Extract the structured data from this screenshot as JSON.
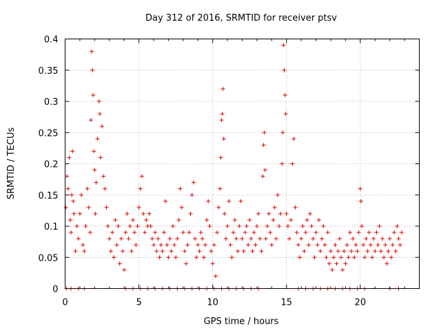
{
  "chart_data": {
    "type": "scatter",
    "title": "Day 312 of 2016, SRMTID for receiver ptsv",
    "xlabel": "GPS time / hours",
    "ylabel": "SRMTID / TECUs",
    "xlim": [
      0,
      24
    ],
    "ylim": [
      0,
      0.4
    ],
    "xticks": [
      0,
      5,
      10,
      15,
      20
    ],
    "xtick_labels": [
      "0",
      "5",
      "10",
      "15",
      "20"
    ],
    "yticks": [
      0,
      0.05,
      0.1,
      0.15,
      0.2,
      0.25,
      0.3,
      0.35,
      0.4
    ],
    "ytick_labels": [
      "0",
      "0.05",
      "0.1",
      "0.15",
      "0.2",
      "0.25",
      "0.3",
      "0.35",
      "0.4"
    ],
    "grid": true,
    "marker": "+",
    "color": "#e00000",
    "series": [
      {
        "name": "SRMTID",
        "points": [
          [
            0.05,
            0.13
          ],
          [
            0.12,
            0.18
          ],
          [
            0.2,
            0.16
          ],
          [
            0.28,
            0.21
          ],
          [
            0.35,
            0.11
          ],
          [
            0.4,
            0.09
          ],
          [
            0.45,
            0.15
          ],
          [
            0.5,
            0.22
          ],
          [
            0.55,
            0.14
          ],
          [
            0.6,
            0.12
          ],
          [
            0.7,
            0.06
          ],
          [
            0.8,
            0.1
          ],
          [
            0.9,
            0.08
          ],
          [
            1.0,
            0.12
          ],
          [
            1.1,
            0.15
          ],
          [
            1.2,
            0.07
          ],
          [
            1.3,
            0.06
          ],
          [
            1.4,
            0.1
          ],
          [
            1.5,
            0.16
          ],
          [
            1.6,
            0.13
          ],
          [
            1.7,
            0.09
          ],
          [
            1.75,
            0.27
          ],
          [
            1.8,
            0.38
          ],
          [
            1.85,
            0.35
          ],
          [
            1.9,
            0.31
          ],
          [
            1.95,
            0.22
          ],
          [
            2.0,
            0.19
          ],
          [
            2.05,
            0.12
          ],
          [
            2.1,
            0.17
          ],
          [
            2.2,
            0.24
          ],
          [
            2.3,
            0.3
          ],
          [
            2.35,
            0.28
          ],
          [
            2.4,
            0.21
          ],
          [
            2.5,
            0.26
          ],
          [
            2.6,
            0.18
          ],
          [
            2.7,
            0.16
          ],
          [
            2.8,
            0.13
          ],
          [
            2.9,
            0.1
          ],
          [
            3.0,
            0.08
          ],
          [
            3.1,
            0.06
          ],
          [
            3.2,
            0.09
          ],
          [
            3.3,
            0.05
          ],
          [
            3.4,
            0.11
          ],
          [
            3.5,
            0.07
          ],
          [
            3.6,
            0.1
          ],
          [
            3.7,
            0.04
          ],
          [
            3.8,
            0.08
          ],
          [
            3.9,
            0.06
          ],
          [
            4.0,
            0.03
          ],
          [
            4.1,
            0.09
          ],
          [
            4.2,
            0.12
          ],
          [
            4.3,
            0.08
          ],
          [
            4.4,
            0.1
          ],
          [
            4.5,
            0.06
          ],
          [
            4.6,
            0.11
          ],
          [
            4.7,
            0.09
          ],
          [
            4.8,
            0.07
          ],
          [
            4.9,
            0.1
          ],
          [
            5.0,
            0.13
          ],
          [
            5.1,
            0.16
          ],
          [
            5.2,
            0.18
          ],
          [
            5.3,
            0.12
          ],
          [
            5.4,
            0.09
          ],
          [
            5.5,
            0.11
          ],
          [
            5.6,
            0.1
          ],
          [
            5.7,
            0.12
          ],
          [
            5.8,
            0.1
          ],
          [
            5.9,
            0.08
          ],
          [
            6.0,
            0.07
          ],
          [
            6.1,
            0.09
          ],
          [
            6.2,
            0.06
          ],
          [
            6.3,
            0.08
          ],
          [
            6.4,
            0.05
          ],
          [
            6.5,
            0.07
          ],
          [
            6.6,
            0.06
          ],
          [
            6.7,
            0.09
          ],
          [
            6.8,
            0.14
          ],
          [
            6.9,
            0.07
          ],
          [
            7.0,
            0.05
          ],
          [
            7.1,
            0.08
          ],
          [
            7.2,
            0.06
          ],
          [
            7.3,
            0.1
          ],
          [
            7.4,
            0.07
          ],
          [
            7.5,
            0.05
          ],
          [
            7.6,
            0.08
          ],
          [
            7.7,
            0.11
          ],
          [
            7.8,
            0.16
          ],
          [
            7.9,
            0.13
          ],
          [
            8.0,
            0.09
          ],
          [
            8.1,
            0.06
          ],
          [
            8.2,
            0.04
          ],
          [
            8.3,
            0.07
          ],
          [
            8.4,
            0.09
          ],
          [
            8.5,
            0.12
          ],
          [
            8.6,
            0.15
          ],
          [
            8.7,
            0.17
          ],
          [
            8.8,
            0.08
          ],
          [
            8.9,
            0.05
          ],
          [
            9.0,
            0.07
          ],
          [
            9.1,
            0.06
          ],
          [
            9.2,
            0.09
          ],
          [
            9.3,
            0.08
          ],
          [
            9.4,
            0.05
          ],
          [
            9.5,
            0.07
          ],
          [
            9.6,
            0.11
          ],
          [
            9.7,
            0.14
          ],
          [
            9.8,
            0.1
          ],
          [
            9.9,
            0.06
          ],
          [
            10.0,
            0.04
          ],
          [
            10.1,
            0.07
          ],
          [
            10.2,
            0.02
          ],
          [
            10.3,
            0.09
          ],
          [
            10.4,
            0.13
          ],
          [
            10.5,
            0.16
          ],
          [
            10.55,
            0.21
          ],
          [
            10.6,
            0.27
          ],
          [
            10.65,
            0.28
          ],
          [
            10.7,
            0.32
          ],
          [
            10.75,
            0.24
          ],
          [
            10.8,
            0.12
          ],
          [
            10.9,
            0.08
          ],
          [
            11.0,
            0.1
          ],
          [
            11.1,
            0.14
          ],
          [
            11.2,
            0.07
          ],
          [
            11.3,
            0.05
          ],
          [
            11.4,
            0.09
          ],
          [
            11.5,
            0.11
          ],
          [
            11.6,
            0.08
          ],
          [
            11.7,
            0.06
          ],
          [
            11.8,
            0.1
          ],
          [
            11.9,
            0.14
          ],
          [
            12.0,
            0.08
          ],
          [
            12.1,
            0.06
          ],
          [
            12.2,
            0.09
          ],
          [
            12.3,
            0.1
          ],
          [
            12.4,
            0.07
          ],
          [
            12.5,
            0.11
          ],
          [
            12.6,
            0.08
          ],
          [
            12.7,
            0.06
          ],
          [
            12.8,
            0.09
          ],
          [
            12.9,
            0.07
          ],
          [
            13.0,
            0.1
          ],
          [
            13.1,
            0.12
          ],
          [
            13.2,
            0.08
          ],
          [
            13.3,
            0.06
          ],
          [
            13.4,
            0.18
          ],
          [
            13.45,
            0.23
          ],
          [
            13.5,
            0.25
          ],
          [
            13.55,
            0.19
          ],
          [
            13.6,
            0.08
          ],
          [
            13.7,
            0.1
          ],
          [
            13.8,
            0.12
          ],
          [
            13.9,
            0.09
          ],
          [
            14.0,
            0.07
          ],
          [
            14.1,
            0.11
          ],
          [
            14.2,
            0.13
          ],
          [
            14.3,
            0.08
          ],
          [
            14.4,
            0.15
          ],
          [
            14.5,
            0.1
          ],
          [
            14.6,
            0.12
          ],
          [
            14.7,
            0.2
          ],
          [
            14.75,
            0.25
          ],
          [
            14.8,
            0.39
          ],
          [
            14.85,
            0.35
          ],
          [
            14.9,
            0.31
          ],
          [
            14.95,
            0.28
          ],
          [
            15.0,
            0.12
          ],
          [
            15.1,
            0.1
          ],
          [
            15.2,
            0.08
          ],
          [
            15.3,
            0.11
          ],
          [
            15.4,
            0.2
          ],
          [
            15.5,
            0.24
          ],
          [
            15.6,
            0.13
          ],
          [
            15.7,
            0.09
          ],
          [
            15.8,
            0.07
          ],
          [
            15.9,
            0.05
          ],
          [
            16.0,
            0.08
          ],
          [
            16.1,
            0.1
          ],
          [
            16.2,
            0.06
          ],
          [
            16.3,
            0.09
          ],
          [
            16.4,
            0.11
          ],
          [
            16.5,
            0.07
          ],
          [
            16.6,
            0.12
          ],
          [
            16.7,
            0.1
          ],
          [
            16.8,
            0.08
          ],
          [
            16.9,
            0.05
          ],
          [
            17.0,
            0.09
          ],
          [
            17.1,
            0.07
          ],
          [
            17.2,
            0.11
          ],
          [
            17.3,
            0.06
          ],
          [
            17.4,
            0.08
          ],
          [
            17.5,
            0.1
          ],
          [
            17.6,
            0.07
          ],
          [
            17.7,
            0.05
          ],
          [
            17.8,
            0.09
          ],
          [
            17.9,
            0.04
          ],
          [
            18.0,
            0.06
          ],
          [
            18.1,
            0.03
          ],
          [
            18.2,
            0.05
          ],
          [
            18.3,
            0.07
          ],
          [
            18.4,
            0.04
          ],
          [
            18.5,
            0.06
          ],
          [
            18.6,
            0.08
          ],
          [
            18.7,
            0.05
          ],
          [
            18.8,
            0.03
          ],
          [
            18.9,
            0.06
          ],
          [
            19.0,
            0.04
          ],
          [
            19.1,
            0.07
          ],
          [
            19.2,
            0.05
          ],
          [
            19.3,
            0.09
          ],
          [
            19.4,
            0.06
          ],
          [
            19.5,
            0.08
          ],
          [
            19.6,
            0.05
          ],
          [
            19.7,
            0.07
          ],
          [
            19.8,
            0.06
          ],
          [
            19.9,
            0.09
          ],
          [
            20.0,
            0.16
          ],
          [
            20.05,
            0.14
          ],
          [
            20.1,
            0.1
          ],
          [
            20.2,
            0.07
          ],
          [
            20.3,
            0.05
          ],
          [
            20.4,
            0.08
          ],
          [
            20.5,
            0.06
          ],
          [
            20.6,
            0.09
          ],
          [
            20.7,
            0.07
          ],
          [
            20.8,
            0.05
          ],
          [
            20.9,
            0.08
          ],
          [
            21.0,
            0.06
          ],
          [
            21.1,
            0.09
          ],
          [
            21.2,
            0.07
          ],
          [
            21.3,
            0.1
          ],
          [
            21.4,
            0.06
          ],
          [
            21.5,
            0.08
          ],
          [
            21.6,
            0.05
          ],
          [
            21.7,
            0.07
          ],
          [
            21.8,
            0.04
          ],
          [
            21.9,
            0.06
          ],
          [
            22.0,
            0.08
          ],
          [
            22.1,
            0.05
          ],
          [
            22.2,
            0.07
          ],
          [
            22.3,
            0.09
          ],
          [
            22.4,
            0.06
          ],
          [
            22.5,
            0.1
          ],
          [
            22.6,
            0.08
          ],
          [
            22.7,
            0.07
          ],
          [
            22.8,
            0.09
          ],
          [
            0.1,
            0
          ],
          [
            0.4,
            0
          ],
          [
            0.9,
            0
          ],
          [
            1.3,
            0
          ],
          [
            4.1,
            0
          ],
          [
            4.6,
            0
          ],
          [
            5.1,
            0
          ],
          [
            5.6,
            0
          ],
          [
            6.1,
            0
          ],
          [
            6.6,
            0
          ],
          [
            7.1,
            0
          ],
          [
            7.6,
            0
          ],
          [
            8.1,
            0
          ],
          [
            8.6,
            0
          ],
          [
            9.1,
            0
          ],
          [
            9.6,
            0
          ],
          [
            10.1,
            0
          ],
          [
            10.6,
            0
          ],
          [
            11.1,
            0
          ],
          [
            11.6,
            0
          ],
          [
            12.1,
            0
          ],
          [
            12.6,
            0
          ],
          [
            13.1,
            0
          ],
          [
            15.8,
            0
          ],
          [
            16.3,
            0
          ],
          [
            16.8,
            0
          ],
          [
            17.3,
            0
          ],
          [
            17.8,
            0
          ],
          [
            18.3,
            0
          ],
          [
            18.8,
            0
          ],
          [
            19.3,
            0
          ],
          [
            19.8,
            0
          ],
          [
            20.3,
            0
          ],
          [
            22.0,
            0
          ],
          [
            22.6,
            0
          ]
        ]
      }
    ]
  }
}
